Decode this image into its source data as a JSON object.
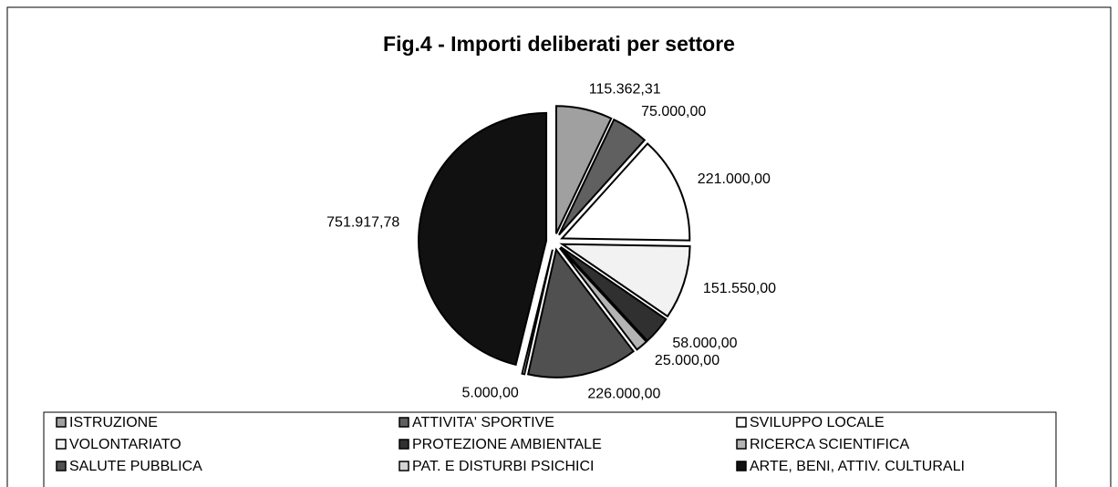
{
  "chart_data": {
    "type": "pie",
    "title": "Fig.4 - Importi deliberati per settore",
    "categories": [
      "ISTRUZIONE",
      "ATTIVITA' SPORTIVE",
      "SVILUPPO LOCALE",
      "VOLONTARIATO",
      "PROTEZIONE AMBIENTALE",
      "RICERCA SCIENTIFICA",
      "SALUTE PUBBLICA",
      "PAT. E DISTURBI PSICHICI",
      "ARTE, BENI, ATTIV. CULTURALI"
    ],
    "values": [
      115362.31,
      75000,
      221000,
      151550,
      58000,
      25000,
      226000,
      5000,
      751917.78
    ],
    "value_labels": [
      "115.362,31",
      "75.000,00",
      "221.000,00",
      "151.550,00",
      "58.000,00",
      "25.000,00",
      "226.000,00",
      "5.000,00",
      "751.917,78"
    ],
    "colors": [
      "#a0a0a0",
      "#606060",
      "#ffffff",
      "#f2f2f2",
      "#303030",
      "#b4b4b4",
      "#505050",
      "#d4d4d4",
      "#111111"
    ],
    "legend": "bottom"
  }
}
